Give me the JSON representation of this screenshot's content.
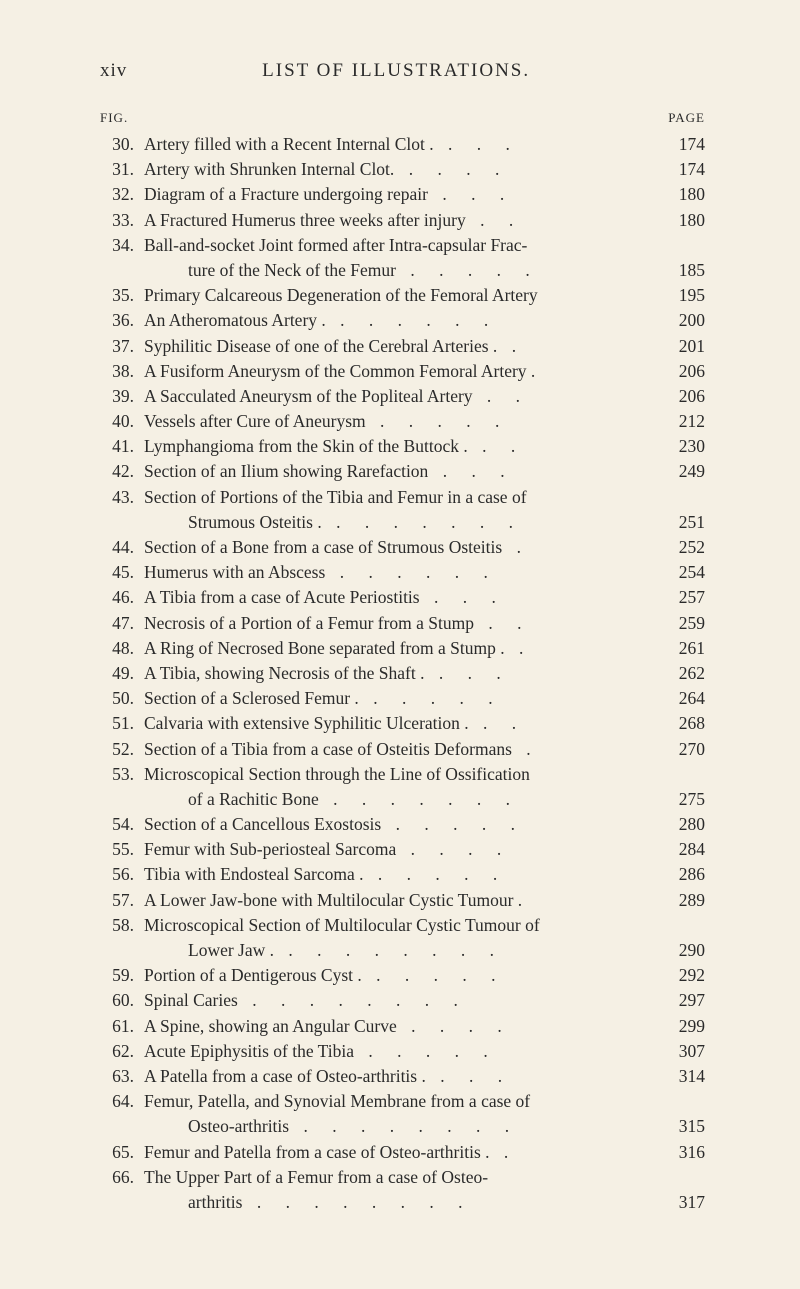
{
  "header": {
    "page_number": "xiv",
    "title": "LIST OF ILLUSTRATIONS."
  },
  "columns": {
    "fig": "FIG.",
    "page": "PAGE"
  },
  "entries": [
    {
      "num": "30.",
      "text": "Artery filled with a Recent Internal Clot .",
      "page": "174",
      "dots": 3
    },
    {
      "num": "31.",
      "text": "Artery with Shrunken Internal Clot.",
      "page": "174",
      "dots": 4
    },
    {
      "num": "32.",
      "text": "Diagram of a Fracture undergoing repair",
      "page": "180",
      "dots": 3
    },
    {
      "num": "33.",
      "text": "A Fractured Humerus three weeks after injury",
      "page": "180",
      "dots": 2
    },
    {
      "num": "34.",
      "text": "Ball-and-socket Joint formed after Intra-capsular Frac-",
      "page": "",
      "dots": 0
    },
    {
      "num": "",
      "text": "ture of the Neck of the Femur",
      "page": "185",
      "dots": 5,
      "indent": true
    },
    {
      "num": "35.",
      "text": "Primary Calcareous Degeneration of the Femoral Artery",
      "page": "195",
      "dots": 0
    },
    {
      "num": "36.",
      "text": "An Atheromatous Artery .",
      "page": "200",
      "dots": 6
    },
    {
      "num": "37.",
      "text": "Syphilitic Disease of one of the Cerebral Arteries .",
      "page": "201",
      "dots": 1
    },
    {
      "num": "38.",
      "text": "A Fusiform Aneurysm of the Common Femoral Artery .",
      "page": "206",
      "dots": 0
    },
    {
      "num": "39.",
      "text": "A Sacculated Aneurysm of the Popliteal Artery",
      "page": "206",
      "dots": 2
    },
    {
      "num": "40.",
      "text": "Vessels after Cure of Aneurysm",
      "page": "212",
      "dots": 5
    },
    {
      "num": "41.",
      "text": "Lymphangioma from the Skin of the Buttock .",
      "page": "230",
      "dots": 2
    },
    {
      "num": "42.",
      "text": "Section of an Ilium showing Rarefaction",
      "page": "249",
      "dots": 3
    },
    {
      "num": "43.",
      "text": "Section of Portions of the Tibia and Femur in a case of",
      "page": "",
      "dots": 0
    },
    {
      "num": "",
      "text": "Strumous Osteitis .",
      "page": "251",
      "dots": 7,
      "indent": true
    },
    {
      "num": "44.",
      "text": "Section of a Bone from a case of Strumous Osteitis",
      "page": "252",
      "dots": 1
    },
    {
      "num": "45.",
      "text": "Humerus with an Abscess",
      "page": "254",
      "dots": 6
    },
    {
      "num": "46.",
      "text": "A Tibia from a case of Acute Periostitis",
      "page": "257",
      "dots": 3
    },
    {
      "num": "47.",
      "text": "Necrosis of a Portion of a Femur from a Stump",
      "page": "259",
      "dots": 2
    },
    {
      "num": "48.",
      "text": "A Ring of Necrosed Bone separated from a Stump .",
      "page": "261",
      "dots": 1
    },
    {
      "num": "49.",
      "text": "A Tibia, showing Necrosis of the Shaft .",
      "page": "262",
      "dots": 3
    },
    {
      "num": "50.",
      "text": "Section of a Sclerosed Femur .",
      "page": "264",
      "dots": 5
    },
    {
      "num": "51.",
      "text": "Calvaria with extensive Syphilitic Ulceration .",
      "page": "268",
      "dots": 2
    },
    {
      "num": "52.",
      "text": "Section of a Tibia from a case of Osteitis Deformans",
      "page": "270",
      "dots": 1
    },
    {
      "num": "53.",
      "text": "Microscopical Section through the Line of Ossification",
      "page": "",
      "dots": 0
    },
    {
      "num": "",
      "text": "of a Rachitic Bone",
      "page": "275",
      "dots": 7,
      "indent": true
    },
    {
      "num": "54.",
      "text": "Section of a Cancellous Exostosis",
      "page": "280",
      "dots": 5
    },
    {
      "num": "55.",
      "text": "Femur with Sub-periosteal Sarcoma",
      "page": "284",
      "dots": 4
    },
    {
      "num": "56.",
      "text": "Tibia with Endosteal Sarcoma .",
      "page": "286",
      "dots": 5
    },
    {
      "num": "57.",
      "text": "A Lower Jaw-bone with Multilocular Cystic Tumour .",
      "page": "289",
      "dots": 0
    },
    {
      "num": "58.",
      "text": "Microscopical Section of Multilocular Cystic Tumour of",
      "page": "",
      "dots": 0
    },
    {
      "num": "",
      "text": "Lower Jaw .",
      "page": "290",
      "dots": 8,
      "indent": true
    },
    {
      "num": "59.",
      "text": "Portion of a Dentigerous Cyst .",
      "page": "292",
      "dots": 5
    },
    {
      "num": "60.",
      "text": "Spinal Caries",
      "page": "297",
      "dots": 8
    },
    {
      "num": "61.",
      "text": "A Spine, showing an Angular Curve",
      "page": "299",
      "dots": 4
    },
    {
      "num": "62.",
      "text": "Acute Epiphysitis of the Tibia",
      "page": "307",
      "dots": 5
    },
    {
      "num": "63.",
      "text": "A Patella from a case of Osteo-arthritis .",
      "page": "314",
      "dots": 3
    },
    {
      "num": "64.",
      "text": "Femur, Patella, and Synovial Membrane from a case of",
      "page": "",
      "dots": 0
    },
    {
      "num": "",
      "text": "Osteo-arthritis",
      "page": "315",
      "dots": 8,
      "indent": true
    },
    {
      "num": "65.",
      "text": "Femur and Patella from a case of Osteo-arthritis .",
      "page": "316",
      "dots": 1
    },
    {
      "num": "66.",
      "text": "The Upper Part of a Femur from a case of Osteo-",
      "page": "",
      "dots": 0
    },
    {
      "num": "",
      "text": "arthritis",
      "page": "317",
      "dots": 8,
      "indent": true
    }
  ],
  "colors": {
    "background": "#f5f0e4",
    "text": "#2a2a2a"
  },
  "typography": {
    "body_fontsize": 17.5,
    "header_fontsize": 19,
    "col_fontsize": 13,
    "line_height": 1.44
  }
}
